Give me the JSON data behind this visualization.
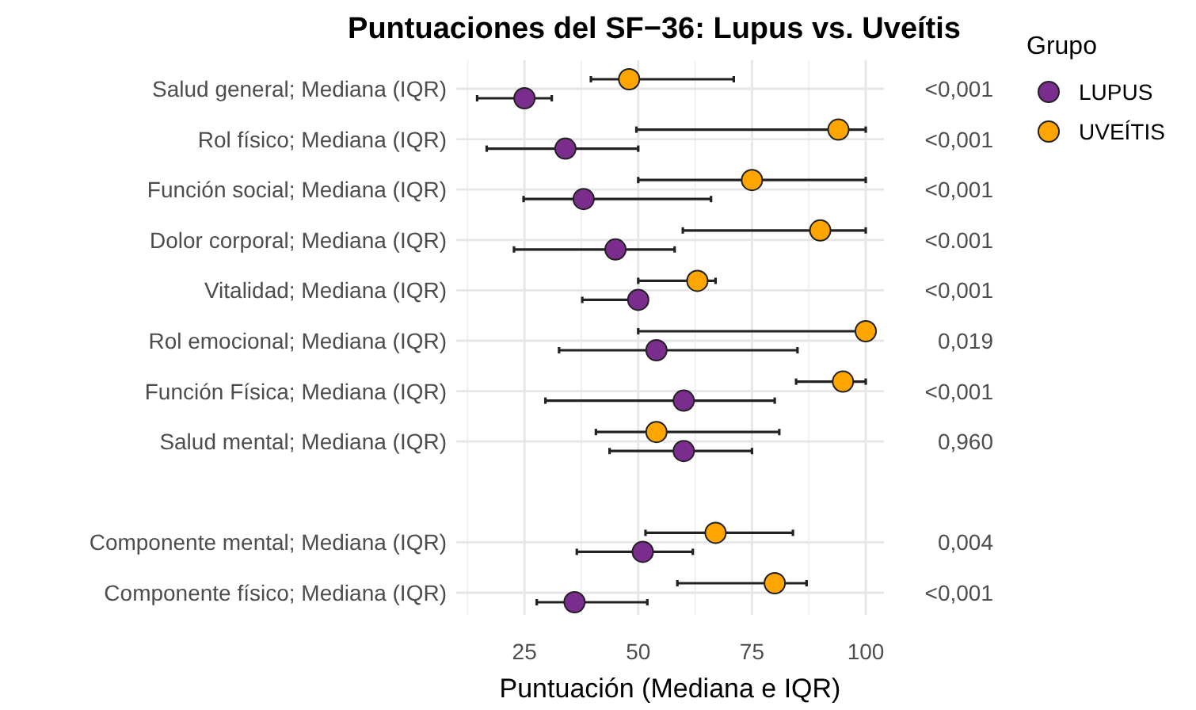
{
  "chart_data": {
    "type": "scatter",
    "orientation": "horizontal",
    "title": "Puntuaciones del SF−36: Lupus vs. Uveítis",
    "xlabel": "Puntuación (Mediana e IQR)",
    "legend_title": "Grupo",
    "legend": "right",
    "grid": true,
    "marker": "circle",
    "categories": [
      "Salud general; Mediana (IQR)",
      "Rol físico; Mediana (IQR)",
      "Función social; Mediana (IQR)",
      "Dolor corporal; Mediana (IQR)",
      "Vitalidad; Mediana (IQR)",
      "Rol emocional; Mediana (IQR)",
      "Función Física; Mediana (IQR)",
      "Salud mental; Mediana (IQR)",
      null,
      "Componente mental; Mediana (IQR)",
      "Componente físico; Mediana (IQR)"
    ],
    "xlim": [
      10,
      104
    ],
    "xticks": [
      25,
      50,
      75,
      100
    ],
    "series": [
      {
        "name": "LUPUS",
        "color": "#7b2d8e",
        "values": [
          25,
          34,
          38,
          45,
          50,
          54,
          60,
          60,
          null,
          51,
          36
        ],
        "errors": [
          [
            14.6,
            31
          ],
          [
            16.7,
            50
          ],
          [
            24.8,
            66
          ],
          [
            22.7,
            58
          ],
          [
            37.7,
            50
          ],
          [
            32.6,
            85
          ],
          [
            29.6,
            80
          ],
          [
            43.7,
            75
          ],
          null,
          [
            36.5,
            62
          ],
          [
            27.7,
            52
          ]
        ]
      },
      {
        "name": "UVEÍTIS",
        "color": "#ffa500",
        "values": [
          48,
          94,
          75,
          90,
          63,
          100,
          95,
          54,
          null,
          67,
          80
        ],
        "errors": [
          [
            39.6,
            71
          ],
          [
            49.6,
            100
          ],
          [
            50,
            100
          ],
          [
            59.8,
            100
          ],
          [
            50,
            67
          ],
          [
            50,
            100
          ],
          [
            84.7,
            100
          ],
          [
            40.7,
            81
          ],
          null,
          [
            51.6,
            84
          ],
          [
            58.6,
            87
          ]
        ]
      }
    ],
    "annotations": [
      "<0,001",
      "<0,001",
      "<0,001",
      "<0.001",
      "<0,001",
      "0,019",
      "<0,001",
      "0,960",
      "0,004",
      "<0,001"
    ]
  }
}
